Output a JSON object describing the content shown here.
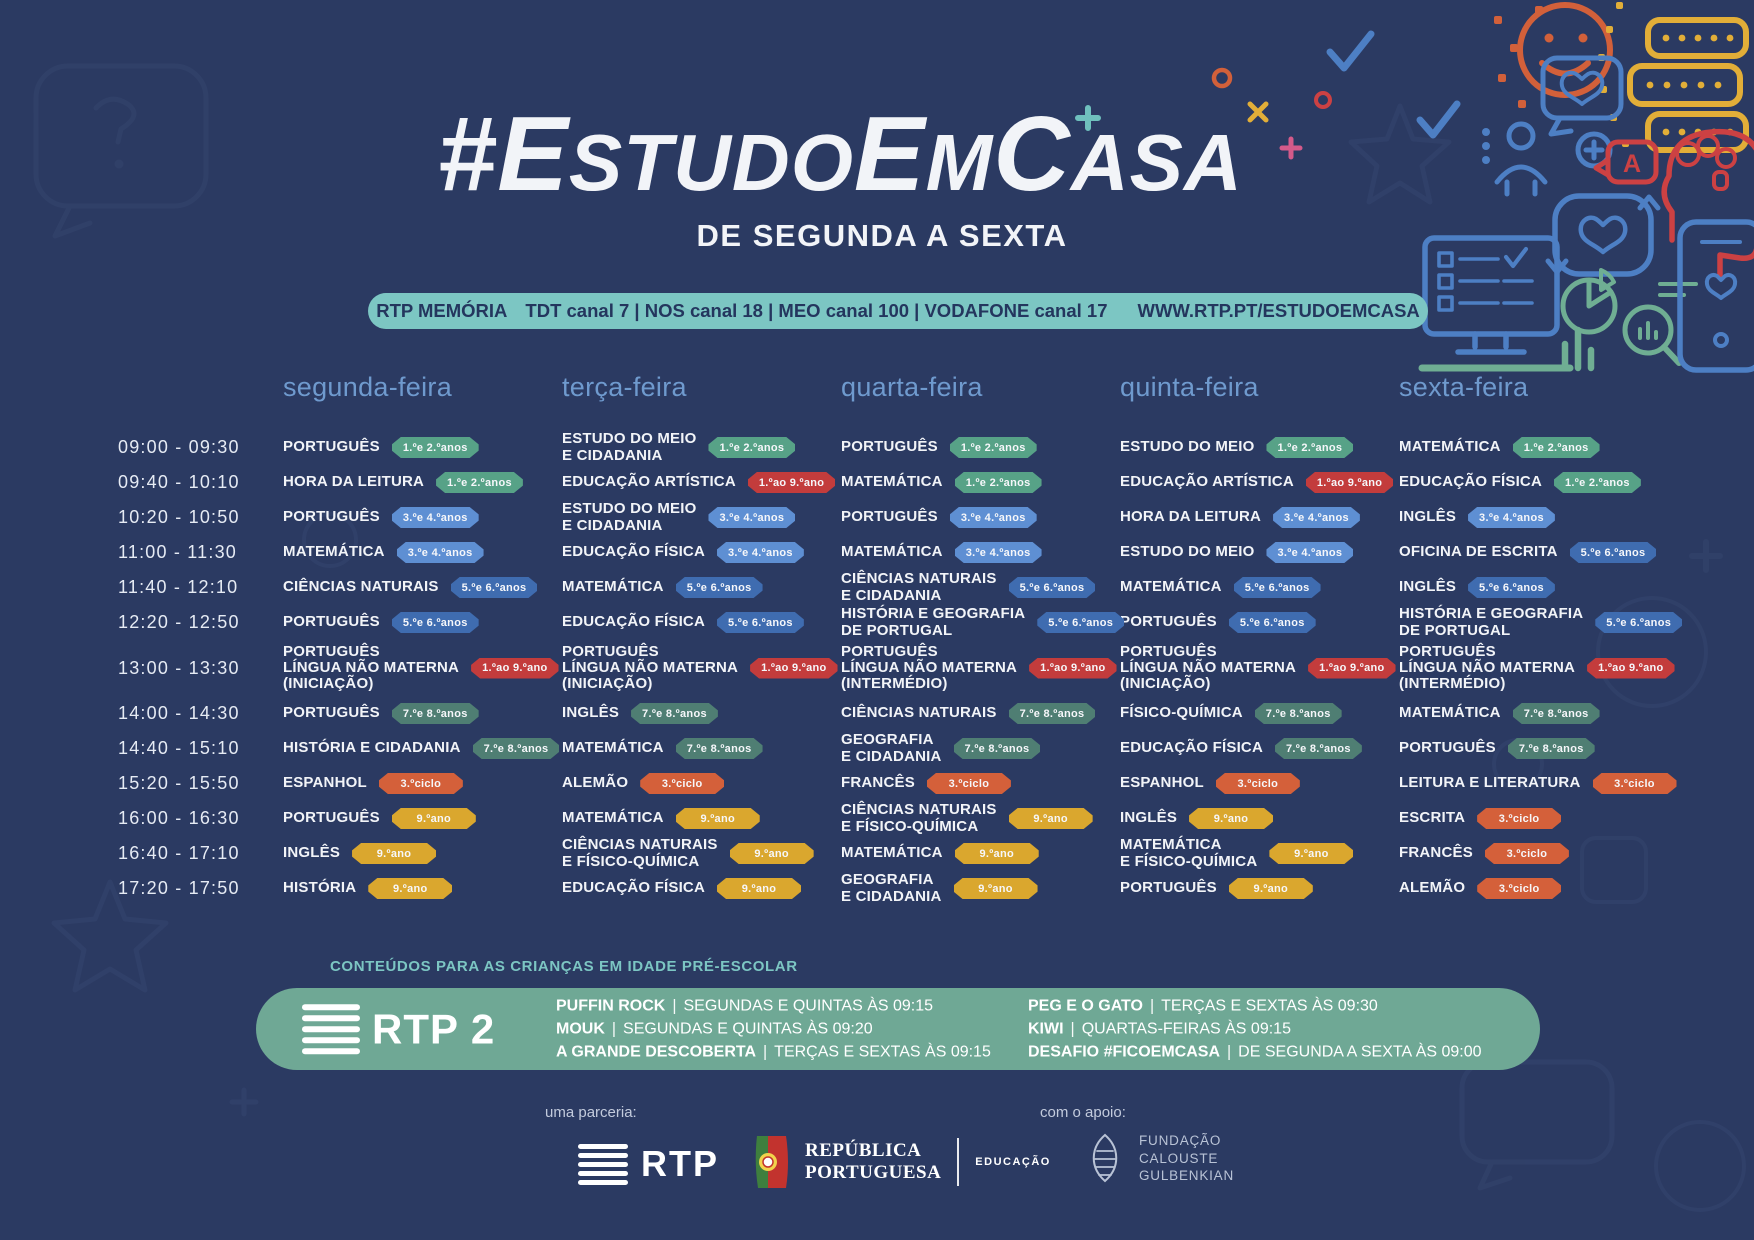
{
  "header": {
    "title_segments": [
      {
        "text": "#E",
        "size": "big"
      },
      {
        "text": "STUDO",
        "size": "small"
      },
      {
        "text": "E",
        "size": "big"
      },
      {
        "text": "M",
        "size": "small"
      },
      {
        "text": "C",
        "size": "big"
      },
      {
        "text": "ASA",
        "size": "small"
      }
    ],
    "subtitle": "DE SEGUNDA A SEXTA"
  },
  "channel_bar": {
    "station": "RTP MEMÓRIA",
    "channels": "TDT canal 7 | NOS canal 18 | MEO canal 100 | VODAFONE canal 17",
    "url": "WWW.RTP.PT/ESTUDOEMCASA"
  },
  "schedule": {
    "days": [
      "segunda-feira",
      "terça-feira",
      "quarta-feira",
      "quinta-feira",
      "sexta-feira"
    ],
    "badges": {
      "g12": {
        "label": "1.ºe 2.ºanos",
        "color": "#57a287"
      },
      "b34": {
        "label": "3.ºe 4.ºanos",
        "color": "#5e8fd3"
      },
      "b56": {
        "label": "5.ºe 6.ºanos",
        "color": "#3f6cb0"
      },
      "r19": {
        "label": "1.ºao 9.ºano",
        "color": "#c33c3c"
      },
      "t78": {
        "label": "7.ºe 8.ºanos",
        "color": "#4f7e73"
      },
      "o3c": {
        "label": "3.ºciclo",
        "color": "#d4603a"
      },
      "y9": {
        "label": "9.ºano",
        "color": "#daa72e"
      }
    },
    "rows": [
      {
        "time": "09:00 - 09:30",
        "cells": [
          {
            "subject": "PORTUGUÊS",
            "badge": "g12"
          },
          {
            "subject": "ESTUDO DO MEIO\nE CIDADANIA",
            "badge": "g12"
          },
          {
            "subject": "PORTUGUÊS",
            "badge": "g12"
          },
          {
            "subject": "ESTUDO DO MEIO",
            "badge": "g12"
          },
          {
            "subject": "MATEMÁTICA",
            "badge": "g12"
          }
        ]
      },
      {
        "time": "09:40 - 10:10",
        "cells": [
          {
            "subject": "HORA DA LEITURA",
            "badge": "g12"
          },
          {
            "subject": "EDUCAÇÃO ARTÍSTICA",
            "badge": "r19"
          },
          {
            "subject": "MATEMÁTICA",
            "badge": "g12"
          },
          {
            "subject": "EDUCAÇÃO ARTÍSTICA",
            "badge": "r19"
          },
          {
            "subject": "EDUCAÇÃO FÍSICA",
            "badge": "g12"
          }
        ]
      },
      {
        "time": "10:20 - 10:50",
        "cells": [
          {
            "subject": "PORTUGUÊS",
            "badge": "b34"
          },
          {
            "subject": "ESTUDO DO MEIO\nE CIDADANIA",
            "badge": "b34"
          },
          {
            "subject": "PORTUGUÊS",
            "badge": "b34"
          },
          {
            "subject": "HORA DA LEITURA",
            "badge": "b34"
          },
          {
            "subject": "INGLÊS",
            "badge": "b34"
          }
        ]
      },
      {
        "time": "11:00 - 11:30",
        "cells": [
          {
            "subject": "MATEMÁTICA",
            "badge": "b34"
          },
          {
            "subject": "EDUCAÇÃO FÍSICA",
            "badge": "b34"
          },
          {
            "subject": "MATEMÁTICA",
            "badge": "b34"
          },
          {
            "subject": "ESTUDO DO MEIO",
            "badge": "b34"
          },
          {
            "subject": "OFICINA DE ESCRITA",
            "badge": "b56"
          }
        ]
      },
      {
        "time": "11:40 - 12:10",
        "cells": [
          {
            "subject": "CIÊNCIAS NATURAIS",
            "badge": "b56"
          },
          {
            "subject": "MATEMÁTICA",
            "badge": "b56"
          },
          {
            "subject": "CIÊNCIAS NATURAIS\nE CIDADANIA",
            "badge": "b56"
          },
          {
            "subject": "MATEMÁTICA",
            "badge": "b56"
          },
          {
            "subject": "INGLÊS",
            "badge": "b56"
          }
        ]
      },
      {
        "time": "12:20 - 12:50",
        "cells": [
          {
            "subject": "PORTUGUÊS",
            "badge": "b56"
          },
          {
            "subject": "EDUCAÇÃO FÍSICA",
            "badge": "b56"
          },
          {
            "subject": "HISTÓRIA E GEOGRAFIA\nDE PORTUGAL",
            "badge": "b56"
          },
          {
            "subject": "PORTUGUÊS",
            "badge": "b56"
          },
          {
            "subject": "HISTÓRIA E GEOGRAFIA\nDE PORTUGAL",
            "badge": "b56"
          }
        ]
      },
      {
        "time": "13:00 - 13:30",
        "cells": [
          {
            "subject": "PORTUGUÊS\nLÍNGUA NÃO MATERNA\n(INICIAÇÃO)",
            "badge": "r19"
          },
          {
            "subject": "PORTUGUÊS\nLÍNGUA NÃO MATERNA\n(INICIAÇÃO)",
            "badge": "r19"
          },
          {
            "subject": "PORTUGUÊS\nLÍNGUA NÃO MATERNA\n(INTERMÉDIO)",
            "badge": "r19"
          },
          {
            "subject": "PORTUGUÊS\nLÍNGUA NÃO MATERNA\n(INICIAÇÃO)",
            "badge": "r19"
          },
          {
            "subject": "PORTUGUÊS\nLÍNGUA NÃO MATERNA\n(INTERMÉDIO)",
            "badge": "r19"
          }
        ]
      },
      {
        "time": "14:00 - 14:30",
        "cells": [
          {
            "subject": "PORTUGUÊS",
            "badge": "t78"
          },
          {
            "subject": "INGLÊS",
            "badge": "t78"
          },
          {
            "subject": "CIÊNCIAS NATURAIS",
            "badge": "t78"
          },
          {
            "subject": "FÍSICO-QUÍMICA",
            "badge": "t78"
          },
          {
            "subject": "MATEMÁTICA",
            "badge": "t78"
          }
        ]
      },
      {
        "time": "14:40 - 15:10",
        "cells": [
          {
            "subject": "HISTÓRIA E CIDADANIA",
            "badge": "t78"
          },
          {
            "subject": "MATEMÁTICA",
            "badge": "t78"
          },
          {
            "subject": "GEOGRAFIA\nE CIDADANIA",
            "badge": "t78"
          },
          {
            "subject": "EDUCAÇÃO FÍSICA",
            "badge": "t78"
          },
          {
            "subject": "PORTUGUÊS",
            "badge": "t78"
          }
        ]
      },
      {
        "time": "15:20 - 15:50",
        "cells": [
          {
            "subject": "ESPANHOL",
            "badge": "o3c"
          },
          {
            "subject": "ALEMÃO",
            "badge": "o3c"
          },
          {
            "subject": "FRANCÊS",
            "badge": "o3c"
          },
          {
            "subject": "ESPANHOL",
            "badge": "o3c"
          },
          {
            "subject": "LEITURA E LITERATURA",
            "badge": "o3c"
          }
        ]
      },
      {
        "time": "16:00 - 16:30",
        "cells": [
          {
            "subject": "PORTUGUÊS",
            "badge": "y9"
          },
          {
            "subject": "MATEMÁTICA",
            "badge": "y9"
          },
          {
            "subject": "CIÊNCIAS NATURAIS\nE FÍSICO-QUÍMICA",
            "badge": "y9"
          },
          {
            "subject": "INGLÊS",
            "badge": "y9"
          },
          {
            "subject": "ESCRITA",
            "badge": "o3c"
          }
        ]
      },
      {
        "time": "16:40 - 17:10",
        "cells": [
          {
            "subject": "INGLÊS",
            "badge": "y9"
          },
          {
            "subject": "CIÊNCIAS NATURAIS\nE FÍSICO-QUÍMICA",
            "badge": "y9"
          },
          {
            "subject": "MATEMÁTICA",
            "badge": "y9"
          },
          {
            "subject": "MATEMÁTICA\nE FÍSICO-QUÍMICA",
            "badge": "y9"
          },
          {
            "subject": "FRANCÊS",
            "badge": "o3c"
          }
        ]
      },
      {
        "time": "17:20 - 17:50",
        "cells": [
          {
            "subject": "HISTÓRIA",
            "badge": "y9"
          },
          {
            "subject": "EDUCAÇÃO FÍSICA",
            "badge": "y9"
          },
          {
            "subject": "GEOGRAFIA\nE CIDADANIA",
            "badge": "y9"
          },
          {
            "subject": "PORTUGUÊS",
            "badge": "y9"
          },
          {
            "subject": "ALEMÃO",
            "badge": "o3c"
          }
        ]
      }
    ]
  },
  "preschool": {
    "heading": "CONTEÚDOS PARA AS CRIANÇAS EM IDADE PRÉ-ESCOLAR",
    "channel_name": "RTP 2",
    "col1": [
      {
        "name": "PUFFIN ROCK",
        "info": "SEGUNDAS E QUINTAS ÀS 09:15"
      },
      {
        "name": "MOUK",
        "info": "SEGUNDAS E QUINTAS ÀS 09:20"
      },
      {
        "name": "A GRANDE DESCOBERTA",
        "info": "TERÇAS E SEXTAS ÀS 09:15"
      }
    ],
    "col2": [
      {
        "name": "PEG E O GATO",
        "info": "TERÇAS E SEXTAS ÀS 09:30"
      },
      {
        "name": "KIWI",
        "info": "QUARTAS-FEIRAS ÀS 09:15"
      },
      {
        "name": "DESAFIO #FICOEMCASA",
        "info": "DE SEGUNDA A SEXTA ÀS 09:00"
      }
    ]
  },
  "footer": {
    "partnership_label": "uma parceria:",
    "rtp_text": "RTP",
    "republica": {
      "line1": "REPÚBLICA",
      "line2": "PORTUGUESA",
      "tag": "EDUCAÇÃO"
    },
    "support_label": "com o apoio:",
    "gulbenkian": [
      "FUNDAÇÃO",
      "CALOUSTE",
      "GULBENKIAN"
    ]
  },
  "colors": {
    "bg": "#2b3a62",
    "accent_teal": "#7cc6c3",
    "band_green": "#6fa895",
    "day_header": "#6f9ace",
    "text": "#f2f4f8",
    "muted": "#c3cbdd"
  }
}
